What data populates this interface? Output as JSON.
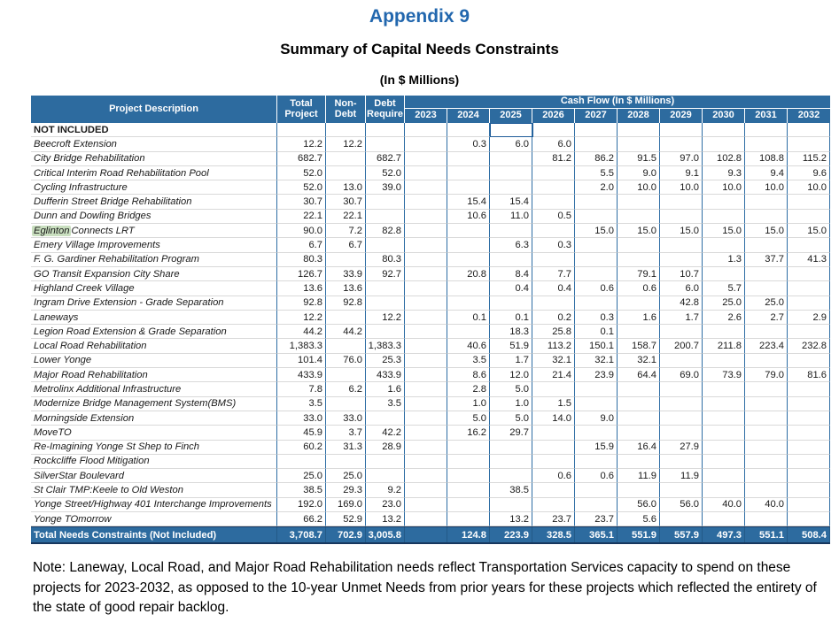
{
  "page": {
    "appendix_title": "Appendix 9",
    "table_title": "Summary of Capital Needs Constraints",
    "table_subtitle": "(In $ Millions)",
    "note": "Note: Laneway, Local Road, and Major Road Rehabilitation needs reflect Transportation Services capacity to spend on these projects for 2023-2032, as opposed to the 10-year Unmet Needs from prior years for these projects which reflected the entirety of the state of good repair backlog."
  },
  "colors": {
    "title_blue": "#2267AE",
    "header_blue": "#2D6B9F",
    "grid_blue": "#2E6DA4",
    "grid_gray": "#D9D9D9",
    "dark_navy_border": "#17375E",
    "highlight_green": "#C9DFBF",
    "selection_border": "#1F5C99"
  },
  "table": {
    "headers": {
      "project_description": "Project Description",
      "total_project": "Total Project",
      "non_debt": "Non- Debt",
      "debt_require": "Debt Require",
      "cash_flow_group": "Cash Flow (In $ Millions)",
      "years": [
        "2023",
        "2024",
        "2025",
        "2026",
        "2027",
        "2028",
        "2029",
        "2030",
        "2031",
        "2032"
      ]
    },
    "section_label": "NOT INCLUDED",
    "selection": {
      "row_label": "NOT INCLUDED",
      "year": "2025"
    },
    "rows": [
      {
        "name": "Beecroft Extension",
        "total_project": "12.2",
        "non_debt": "12.2",
        "debt_require": "",
        "cash_flow": [
          "",
          "0.3",
          "6.0",
          "6.0",
          "",
          "",
          "",
          "",
          "",
          ""
        ]
      },
      {
        "name": "City Bridge Rehabilitation",
        "total_project": "682.7",
        "non_debt": "",
        "debt_require": "682.7",
        "cash_flow": [
          "",
          "",
          "",
          "81.2",
          "86.2",
          "91.5",
          "97.0",
          "102.8",
          "108.8",
          "115.2"
        ]
      },
      {
        "name": "Critical Interim Road Rehabilitation Pool",
        "total_project": "52.0",
        "non_debt": "",
        "debt_require": "52.0",
        "cash_flow": [
          "",
          "",
          "",
          "",
          "5.5",
          "9.0",
          "9.1",
          "9.3",
          "9.4",
          "9.6"
        ]
      },
      {
        "name": "Cycling Infrastructure",
        "total_project": "52.0",
        "non_debt": "13.0",
        "debt_require": "39.0",
        "cash_flow": [
          "",
          "",
          "",
          "",
          "2.0",
          "10.0",
          "10.0",
          "10.0",
          "10.0",
          "10.0"
        ]
      },
      {
        "name": "Dufferin Street Bridge Rehabilitation",
        "total_project": "30.7",
        "non_debt": "30.7",
        "debt_require": "",
        "cash_flow": [
          "",
          "15.4",
          "15.4",
          "",
          "",
          "",
          "",
          "",
          "",
          ""
        ]
      },
      {
        "name": "Dunn and Dowling Bridges",
        "total_project": "22.1",
        "non_debt": "22.1",
        "debt_require": "",
        "cash_flow": [
          "",
          "10.6",
          "11.0",
          "0.5",
          "",
          "",
          "",
          "",
          "",
          ""
        ]
      },
      {
        "name": "Eglinton Connects LRT",
        "highlight_prefix": "Eglinton",
        "name_rest": " Connects LRT",
        "total_project": "90.0",
        "non_debt": "7.2",
        "debt_require": "82.8",
        "cash_flow": [
          "",
          "",
          "",
          "",
          "15.0",
          "15.0",
          "15.0",
          "15.0",
          "15.0",
          "15.0"
        ]
      },
      {
        "name": "Emery Village Improvements",
        "total_project": "6.7",
        "non_debt": "6.7",
        "debt_require": "",
        "cash_flow": [
          "",
          "",
          "6.3",
          "0.3",
          "",
          "",
          "",
          "",
          "",
          ""
        ]
      },
      {
        "name": "F. G. Gardiner Rehabilitation Program",
        "total_project": "80.3",
        "non_debt": "",
        "debt_require": "80.3",
        "cash_flow": [
          "",
          "",
          "",
          "",
          "",
          "",
          "",
          "1.3",
          "37.7",
          "41.3"
        ]
      },
      {
        "name": "GO Transit Expansion City Share",
        "total_project": "126.7",
        "non_debt": "33.9",
        "debt_require": "92.7",
        "cash_flow": [
          "",
          "20.8",
          "8.4",
          "7.7",
          "",
          "79.1",
          "10.7",
          "",
          "",
          ""
        ]
      },
      {
        "name": "Highland Creek Village",
        "total_project": "13.6",
        "non_debt": "13.6",
        "debt_require": "",
        "cash_flow": [
          "",
          "",
          "0.4",
          "0.4",
          "0.6",
          "0.6",
          "6.0",
          "5.7",
          "",
          ""
        ]
      },
      {
        "name": "Ingram Drive Extension - Grade Separation",
        "total_project": "92.8",
        "non_debt": "92.8",
        "debt_require": "",
        "cash_flow": [
          "",
          "",
          "",
          "",
          "",
          "",
          "42.8",
          "25.0",
          "25.0",
          ""
        ]
      },
      {
        "name": "Laneways",
        "total_project": "12.2",
        "non_debt": "",
        "debt_require": "12.2",
        "cash_flow": [
          "",
          "0.1",
          "0.1",
          "0.2",
          "0.3",
          "1.6",
          "1.7",
          "2.6",
          "2.7",
          "2.9"
        ]
      },
      {
        "name": "Legion Road Extension & Grade Separation",
        "total_project": "44.2",
        "non_debt": "44.2",
        "debt_require": "",
        "cash_flow": [
          "",
          "",
          "18.3",
          "25.8",
          "0.1",
          "",
          "",
          "",
          "",
          ""
        ]
      },
      {
        "name": "Local Road Rehabilitation",
        "total_project": "1,383.3",
        "non_debt": "",
        "debt_require": "1,383.3",
        "cash_flow": [
          "",
          "40.6",
          "51.9",
          "113.2",
          "150.1",
          "158.7",
          "200.7",
          "211.8",
          "223.4",
          "232.8"
        ]
      },
      {
        "name": "Lower Yonge",
        "total_project": "101.4",
        "non_debt": "76.0",
        "debt_require": "25.3",
        "cash_flow": [
          "",
          "3.5",
          "1.7",
          "32.1",
          "32.1",
          "32.1",
          "",
          "",
          "",
          ""
        ]
      },
      {
        "name": "Major Road Rehabilitation",
        "total_project": "433.9",
        "non_debt": "",
        "debt_require": "433.9",
        "cash_flow": [
          "",
          "8.6",
          "12.0",
          "21.4",
          "23.9",
          "64.4",
          "69.0",
          "73.9",
          "79.0",
          "81.6"
        ]
      },
      {
        "name": "Metrolinx Additional Infrastructure",
        "total_project": "7.8",
        "non_debt": "6.2",
        "debt_require": "1.6",
        "cash_flow": [
          "",
          "2.8",
          "5.0",
          "",
          "",
          "",
          "",
          "",
          "",
          ""
        ]
      },
      {
        "name": "Modernize Bridge Management System(BMS)",
        "total_project": "3.5",
        "non_debt": "",
        "debt_require": "3.5",
        "cash_flow": [
          "",
          "1.0",
          "1.0",
          "1.5",
          "",
          "",
          "",
          "",
          "",
          ""
        ]
      },
      {
        "name": "Morningside Extension",
        "total_project": "33.0",
        "non_debt": "33.0",
        "debt_require": "",
        "cash_flow": [
          "",
          "5.0",
          "5.0",
          "14.0",
          "9.0",
          "",
          "",
          "",
          "",
          ""
        ]
      },
      {
        "name": "MoveTO",
        "total_project": "45.9",
        "non_debt": "3.7",
        "debt_require": "42.2",
        "cash_flow": [
          "",
          "16.2",
          "29.7",
          "",
          "",
          "",
          "",
          "",
          "",
          ""
        ]
      },
      {
        "name": "Re-Imagining Yonge St Shep to Finch",
        "total_project": "60.2",
        "non_debt": "31.3",
        "debt_require": "28.9",
        "cash_flow": [
          "",
          "",
          "",
          "",
          "15.9",
          "16.4",
          "27.9",
          "",
          "",
          ""
        ]
      },
      {
        "name": "Rockcliffe Flood Mitigation",
        "total_project": "",
        "non_debt": "",
        "debt_require": "",
        "cash_flow": [
          "",
          "",
          "",
          "",
          "",
          "",
          "",
          "",
          "",
          ""
        ]
      },
      {
        "name": "SilverStar Boulevard",
        "total_project": "25.0",
        "non_debt": "25.0",
        "debt_require": "",
        "cash_flow": [
          "",
          "",
          "",
          "0.6",
          "0.6",
          "11.9",
          "11.9",
          "",
          "",
          ""
        ]
      },
      {
        "name": "St Clair TMP:Keele to Old Weston",
        "total_project": "38.5",
        "non_debt": "29.3",
        "debt_require": "9.2",
        "cash_flow": [
          "",
          "",
          "38.5",
          "",
          "",
          "",
          "",
          "",
          "",
          ""
        ]
      },
      {
        "name": "Yonge Street/Highway 401 Interchange Improvements",
        "total_project": "192.0",
        "non_debt": "169.0",
        "debt_require": "23.0",
        "cash_flow": [
          "",
          "",
          "",
          "",
          "",
          "56.0",
          "56.0",
          "40.0",
          "40.0",
          ""
        ]
      },
      {
        "name": "Yonge TOmorrow",
        "total_project": "66.2",
        "non_debt": "52.9",
        "debt_require": "13.2",
        "cash_flow": [
          "",
          "",
          "13.2",
          "23.7",
          "23.7",
          "5.6",
          "",
          "",
          "",
          ""
        ]
      }
    ],
    "total_row": {
      "label": "Total Needs Constraints (Not Included)",
      "total_project": "3,708.7",
      "non_debt": "702.9",
      "debt_require": "3,005.8",
      "cash_flow": [
        "",
        "124.8",
        "223.9",
        "328.5",
        "365.1",
        "551.9",
        "557.9",
        "497.3",
        "551.1",
        "508.4"
      ]
    }
  }
}
